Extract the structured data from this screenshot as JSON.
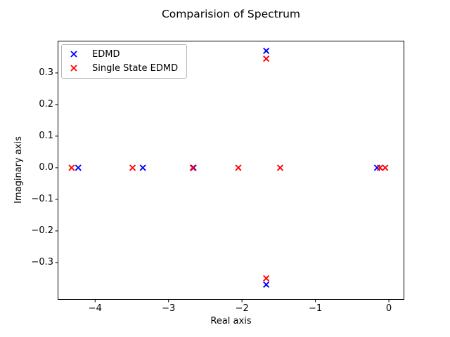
{
  "figure": {
    "background": "#ffffff"
  },
  "legend": {
    "items": [
      {
        "label": "EDMD",
        "color": "#0000ff"
      },
      {
        "label": "Single State EDMD",
        "color": "#ff0000"
      }
    ]
  },
  "chart_data": {
    "type": "scatter",
    "title": "Comparision of Spectrum",
    "xlabel": "Real axis",
    "ylabel": "Imaginary axis",
    "marker": "x",
    "grid": false,
    "legend_position": "upper left",
    "xlim": [
      -4.51,
      0.21
    ],
    "ylim": [
      -0.418,
      0.402
    ],
    "x_ticks": [
      -4,
      -3,
      -2,
      -1,
      0
    ],
    "x_tick_labels": [
      "−4",
      "−3",
      "−2",
      "−1",
      "0"
    ],
    "y_ticks": [
      0.3,
      0.2,
      0.1,
      0.0,
      -0.1,
      -0.2,
      -0.3
    ],
    "y_tick_labels": [
      "0.3",
      "0.2",
      "0.1",
      "0.0",
      "−0.1",
      "−0.2",
      "−0.3"
    ],
    "series": [
      {
        "name": "EDMD",
        "color": "#0000ff",
        "points": [
          [
            -4.23,
            0.0
          ],
          [
            -3.35,
            0.0
          ],
          [
            -2.66,
            0.0
          ],
          [
            -1.67,
            0.37
          ],
          [
            -1.67,
            -0.37
          ],
          [
            -0.16,
            0.0
          ]
        ]
      },
      {
        "name": "Single State EDMD",
        "color": "#ff0000",
        "points": [
          [
            -4.32,
            0.0
          ],
          [
            -3.49,
            0.0
          ],
          [
            -2.67,
            0.0
          ],
          [
            -2.05,
            0.0
          ],
          [
            -1.67,
            0.345
          ],
          [
            -1.67,
            -0.35
          ],
          [
            -1.48,
            0.0
          ],
          [
            -0.12,
            0.0
          ],
          [
            -0.05,
            0.0
          ]
        ]
      }
    ]
  }
}
